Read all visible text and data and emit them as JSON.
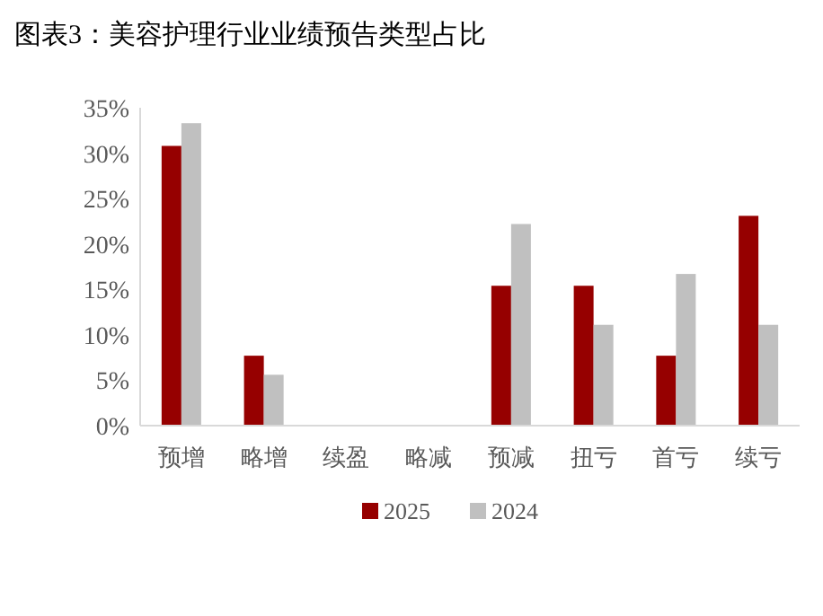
{
  "chart_data": {
    "type": "bar",
    "title": "图表3：美容护理行业业绩预告类型占比",
    "categories": [
      "预增",
      "略增",
      "续盈",
      "略减",
      "预减",
      "扭亏",
      "首亏",
      "续亏"
    ],
    "series": [
      {
        "name": "2025",
        "color": "#960000",
        "values": [
          30.8,
          7.7,
          0,
          0,
          15.4,
          15.4,
          7.7,
          23.1
        ]
      },
      {
        "name": "2024",
        "color": "#c0c0c0",
        "values": [
          33.3,
          5.6,
          0,
          0,
          22.2,
          11.1,
          16.7,
          11.1
        ]
      }
    ],
    "ylim": [
      0,
      35
    ],
    "yticks": [
      {
        "value": 0,
        "label": "0%"
      },
      {
        "value": 5,
        "label": "5%"
      },
      {
        "value": 10,
        "label": "10%"
      },
      {
        "value": 15,
        "label": "15%"
      },
      {
        "value": 20,
        "label": "20%"
      },
      {
        "value": 25,
        "label": "25%"
      },
      {
        "value": 30,
        "label": "30%"
      },
      {
        "value": 35,
        "label": "35%"
      }
    ],
    "grid": false,
    "legend": "bottom"
  }
}
